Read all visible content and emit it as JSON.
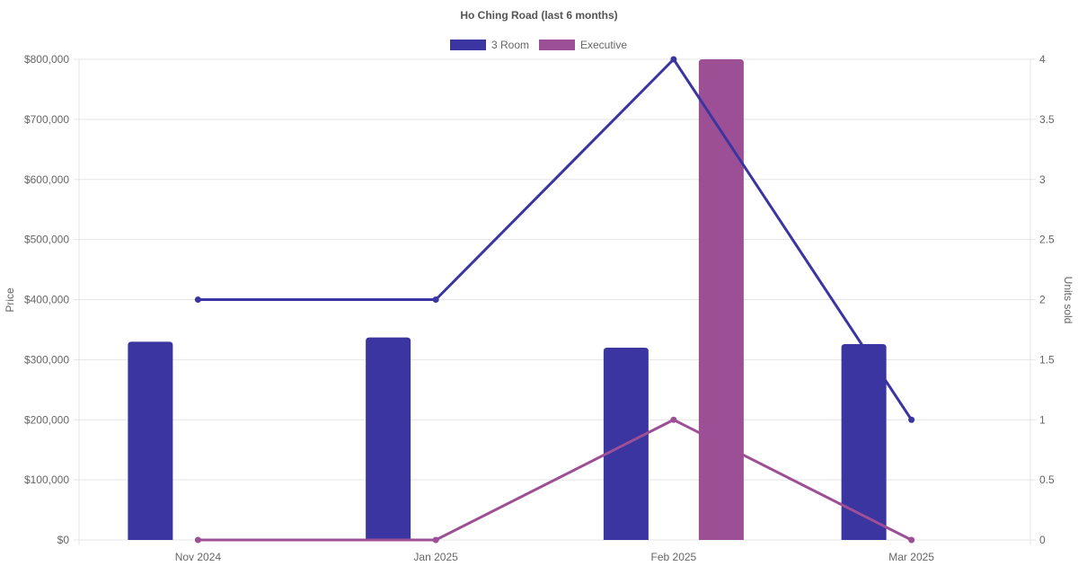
{
  "chart_data": {
    "type": "bar",
    "title": "Ho Ching Road (last 6 months)",
    "categories": [
      "Nov 2024",
      "Jan 2025",
      "Feb 2025",
      "Mar 2025"
    ],
    "legend": {
      "placement": "top-center",
      "items": [
        "3 Room",
        "Executive"
      ]
    },
    "y_left": {
      "label": "Price",
      "range": [
        0,
        800000
      ],
      "ticks": [
        "$0",
        "$100,000",
        "$200,000",
        "$300,000",
        "$400,000",
        "$500,000",
        "$600,000",
        "$700,000",
        "$800,000"
      ],
      "tick_values": [
        0,
        100000,
        200000,
        300000,
        400000,
        500000,
        600000,
        700000,
        800000
      ]
    },
    "y_right": {
      "label": "Units sold",
      "range": [
        0,
        4
      ],
      "ticks": [
        "0",
        "0.5",
        "1",
        "1.5",
        "2",
        "2.5",
        "3",
        "3.5",
        "4"
      ],
      "tick_values": [
        0,
        0.5,
        1,
        1.5,
        2,
        2.5,
        3,
        3.5,
        4
      ]
    },
    "grid": true,
    "series": [
      {
        "name": "3 Room",
        "kind": "bar",
        "axis": "left",
        "color": "#3a35a0",
        "values": [
          330000,
          337000,
          320000,
          326000
        ]
      },
      {
        "name": "Executive",
        "kind": "bar",
        "axis": "left",
        "color": "#9d4f95",
        "values": [
          null,
          null,
          800000,
          null
        ]
      },
      {
        "name": "3 Room",
        "kind": "line",
        "axis": "right",
        "color": "#3a35a0",
        "values": [
          2,
          2,
          4,
          1
        ]
      },
      {
        "name": "Executive",
        "kind": "line",
        "axis": "right",
        "color": "#9d4f95",
        "values": [
          0,
          0,
          1,
          0
        ]
      }
    ]
  }
}
